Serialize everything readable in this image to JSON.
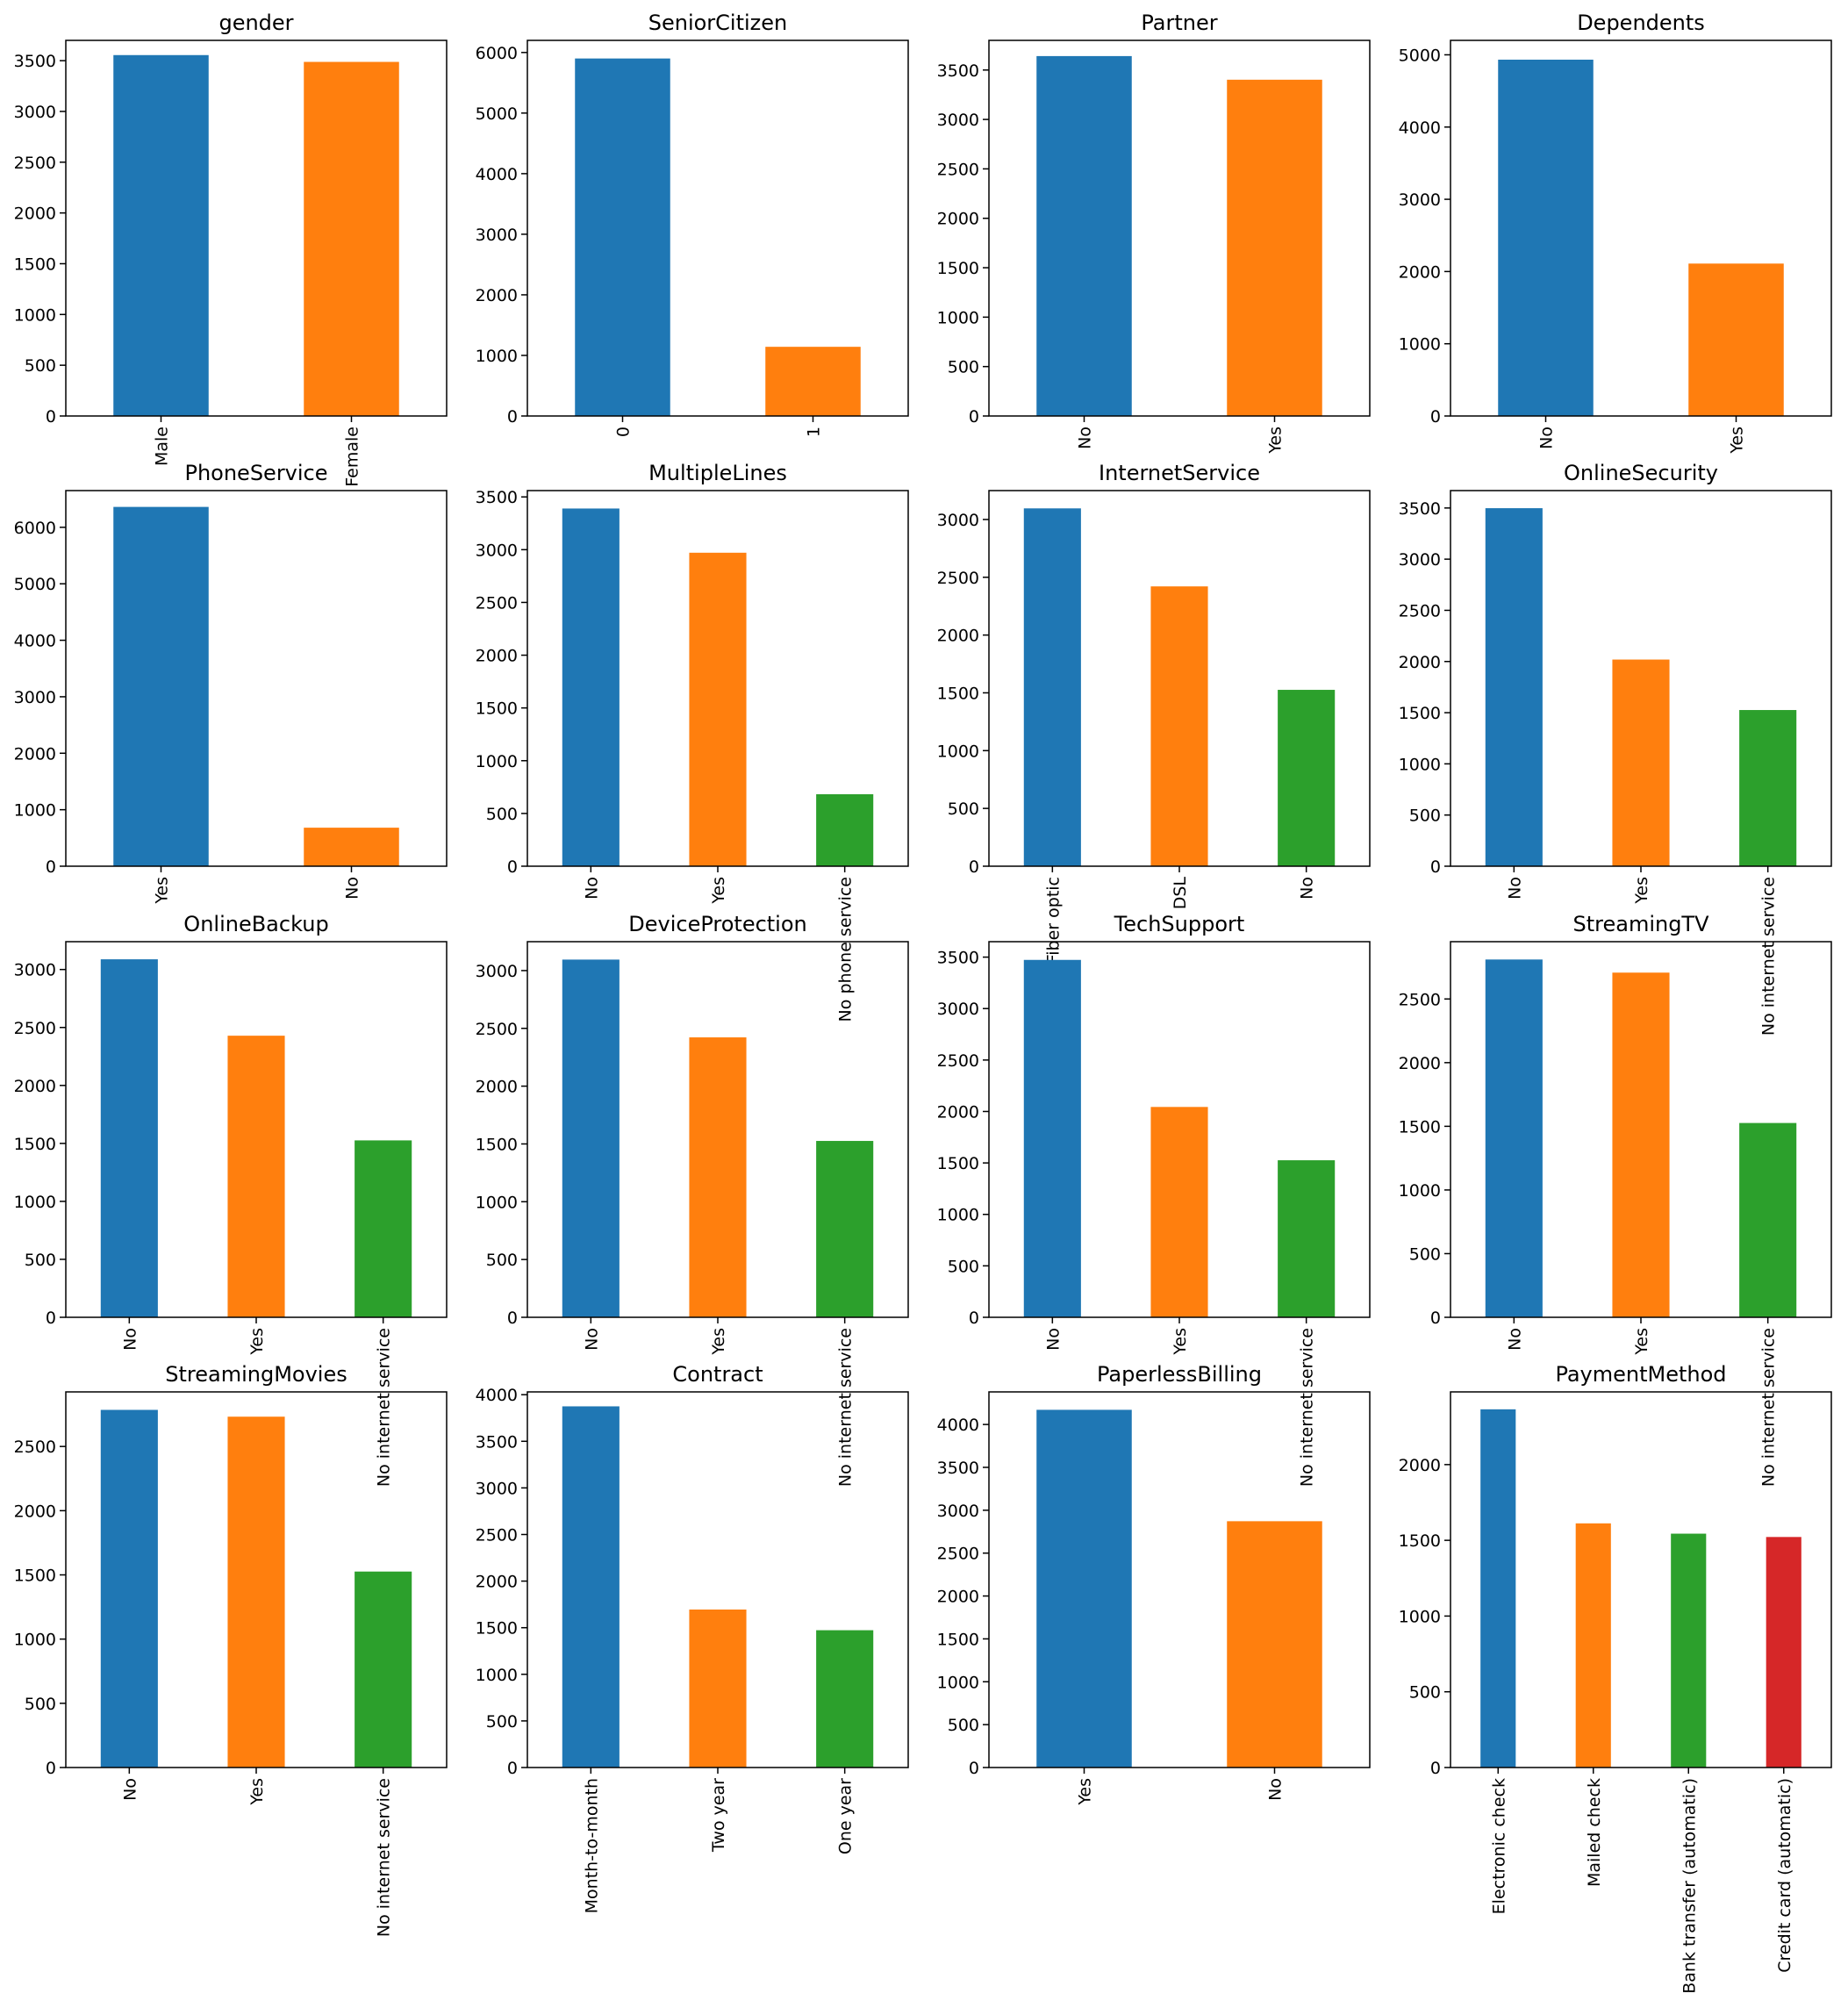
{
  "colors": [
    "#1f77b4",
    "#ff7f0e",
    "#2ca02c",
    "#d62728"
  ],
  "chart_data": [
    {
      "type": "bar",
      "title": "gender",
      "categories": [
        "Male",
        "Female"
      ],
      "values": [
        3555,
        3488
      ],
      "ylim": [
        0,
        3700
      ],
      "yticks": [
        0,
        500,
        1000,
        1500,
        2000,
        2500,
        3000,
        3500
      ]
    },
    {
      "type": "bar",
      "title": "SeniorCitizen",
      "categories": [
        "0",
        "1"
      ],
      "values": [
        5901,
        1142
      ],
      "ylim": [
        0,
        6200
      ],
      "yticks": [
        0,
        1000,
        2000,
        3000,
        4000,
        5000,
        6000
      ]
    },
    {
      "type": "bar",
      "title": "Partner",
      "categories": [
        "No",
        "Yes"
      ],
      "values": [
        3641,
        3402
      ],
      "ylim": [
        0,
        3800
      ],
      "yticks": [
        0,
        500,
        1000,
        1500,
        2000,
        2500,
        3000,
        3500
      ]
    },
    {
      "type": "bar",
      "title": "Dependents",
      "categories": [
        "No",
        "Yes"
      ],
      "values": [
        4933,
        2110
      ],
      "ylim": [
        0,
        5200
      ],
      "yticks": [
        0,
        1000,
        2000,
        3000,
        4000,
        5000
      ]
    },
    {
      "type": "bar",
      "title": "PhoneService",
      "categories": [
        "Yes",
        "No"
      ],
      "values": [
        6361,
        682
      ],
      "ylim": [
        0,
        6650
      ],
      "yticks": [
        0,
        1000,
        2000,
        3000,
        4000,
        5000,
        6000
      ]
    },
    {
      "type": "bar",
      "title": "MultipleLines",
      "categories": [
        "No",
        "Yes",
        "No phone service"
      ],
      "values": [
        3390,
        2971,
        682
      ],
      "ylim": [
        0,
        3560
      ],
      "yticks": [
        0,
        500,
        1000,
        1500,
        2000,
        2500,
        3000,
        3500
      ]
    },
    {
      "type": "bar",
      "title": "InternetService",
      "categories": [
        "Fiber optic",
        "DSL",
        "No"
      ],
      "values": [
        3096,
        2421,
        1526
      ],
      "ylim": [
        0,
        3250
      ],
      "yticks": [
        0,
        500,
        1000,
        1500,
        2000,
        2500,
        3000
      ]
    },
    {
      "type": "bar",
      "title": "OnlineSecurity",
      "categories": [
        "No",
        "Yes",
        "No internet service"
      ],
      "values": [
        3498,
        2019,
        1526
      ],
      "ylim": [
        0,
        3670
      ],
      "yticks": [
        0,
        500,
        1000,
        1500,
        2000,
        2500,
        3000,
        3500
      ]
    },
    {
      "type": "bar",
      "title": "OnlineBackup",
      "categories": [
        "No",
        "Yes",
        "No internet service"
      ],
      "values": [
        3088,
        2429,
        1526
      ],
      "ylim": [
        0,
        3240
      ],
      "yticks": [
        0,
        500,
        1000,
        1500,
        2000,
        2500,
        3000
      ]
    },
    {
      "type": "bar",
      "title": "DeviceProtection",
      "categories": [
        "No",
        "Yes",
        "No internet service"
      ],
      "values": [
        3095,
        2422,
        1526
      ],
      "ylim": [
        0,
        3250
      ],
      "yticks": [
        0,
        500,
        1000,
        1500,
        2000,
        2500,
        3000
      ]
    },
    {
      "type": "bar",
      "title": "TechSupport",
      "categories": [
        "No",
        "Yes",
        "No internet service"
      ],
      "values": [
        3473,
        2044,
        1526
      ],
      "ylim": [
        0,
        3650
      ],
      "yticks": [
        0,
        500,
        1000,
        1500,
        2000,
        2500,
        3000,
        3500
      ]
    },
    {
      "type": "bar",
      "title": "StreamingTV",
      "categories": [
        "No",
        "Yes",
        "No internet service"
      ],
      "values": [
        2810,
        2707,
        1526
      ],
      "ylim": [
        0,
        2950
      ],
      "yticks": [
        0,
        500,
        1000,
        1500,
        2000,
        2500
      ]
    },
    {
      "type": "bar",
      "title": "StreamingMovies",
      "categories": [
        "No",
        "Yes",
        "No internet service"
      ],
      "values": [
        2785,
        2732,
        1526
      ],
      "ylim": [
        0,
        2925
      ],
      "yticks": [
        0,
        500,
        1000,
        1500,
        2000,
        2500
      ]
    },
    {
      "type": "bar",
      "title": "Contract",
      "categories": [
        "Month-to-month",
        "Two year",
        "One year"
      ],
      "values": [
        3875,
        1695,
        1473
      ],
      "ylim": [
        0,
        4030
      ],
      "yticks": [
        0,
        500,
        1000,
        1500,
        2000,
        2500,
        3000,
        3500,
        4000
      ]
    },
    {
      "type": "bar",
      "title": "PaperlessBilling",
      "categories": [
        "Yes",
        "No"
      ],
      "values": [
        4171,
        2872
      ],
      "ylim": [
        0,
        4380
      ],
      "yticks": [
        0,
        500,
        1000,
        1500,
        2000,
        2500,
        3000,
        3500,
        4000
      ]
    },
    {
      "type": "bar",
      "title": "PaymentMethod",
      "categories": [
        "Electronic check",
        "Mailed check",
        "Bank transfer (automatic)",
        "Credit card (automatic)"
      ],
      "values": [
        2365,
        1612,
        1544,
        1522
      ],
      "ylim": [
        0,
        2480
      ],
      "yticks": [
        0,
        500,
        1000,
        1500,
        2000
      ]
    }
  ]
}
